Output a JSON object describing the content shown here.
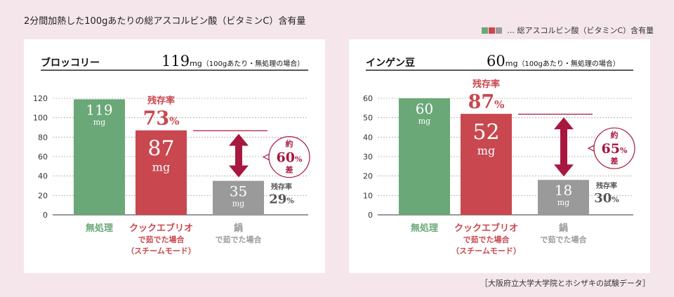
{
  "page": {
    "title": "2分間加熱した100gあたりの総アスコルビン酸（ビタミンC）含有量",
    "legend_label": "… 総アスコルビン酸（ビタミンC）含有量",
    "source_note": "［大阪府立大学大学院とホシザキの試験データ］"
  },
  "colors": {
    "raw": "#6aa877",
    "steam": "#c9474e",
    "pot": "#9a9a9a",
    "arrow": "#a8173f",
    "grid": "#aaaaaa"
  },
  "chart_data": [
    {
      "type": "bar",
      "panel_title": "ブロッコリー",
      "reference_value": "119",
      "reference_unit": "mg",
      "reference_note": "（100gあたり・無処理の場合）",
      "ylim": [
        0,
        120
      ],
      "yticks": [
        "0",
        "20",
        "40",
        "60",
        "80",
        "100",
        "120"
      ],
      "categories": [
        [
          "無処理"
        ],
        [
          "クックエブリオ",
          "で茹でた場合",
          "（スチームモード）"
        ],
        [
          "鍋",
          "で茹でた場合"
        ]
      ],
      "values": [
        119,
        87,
        35
      ],
      "value_labels": [
        "119",
        "87",
        "35"
      ],
      "unit": "mg",
      "retention": [
        {
          "label": "残存率",
          "value": "73",
          "unit": "%"
        },
        {
          "label": "残存率",
          "value": "29",
          "unit": "%"
        }
      ],
      "difference": {
        "prefix": "約",
        "value": "60",
        "unit": "%",
        "suffix": "差"
      }
    },
    {
      "type": "bar",
      "panel_title": "インゲン豆",
      "reference_value": "60",
      "reference_unit": "mg",
      "reference_note": "（100gあたり・無処理の場合）",
      "ylim": [
        0,
        60
      ],
      "yticks": [
        "0",
        "10",
        "20",
        "30",
        "40",
        "50",
        "60"
      ],
      "categories": [
        [
          "無処理"
        ],
        [
          "クックエブリオ",
          "で茹でた場合",
          "（スチームモード）"
        ],
        [
          "鍋",
          "で茹でた場合"
        ]
      ],
      "values": [
        60,
        52,
        18
      ],
      "value_labels": [
        "60",
        "52",
        "18"
      ],
      "unit": "mg",
      "retention": [
        {
          "label": "残存率",
          "value": "87",
          "unit": "%"
        },
        {
          "label": "残存率",
          "value": "30",
          "unit": "%"
        }
      ],
      "difference": {
        "prefix": "約",
        "value": "65",
        "unit": "%",
        "suffix": "差"
      }
    }
  ]
}
